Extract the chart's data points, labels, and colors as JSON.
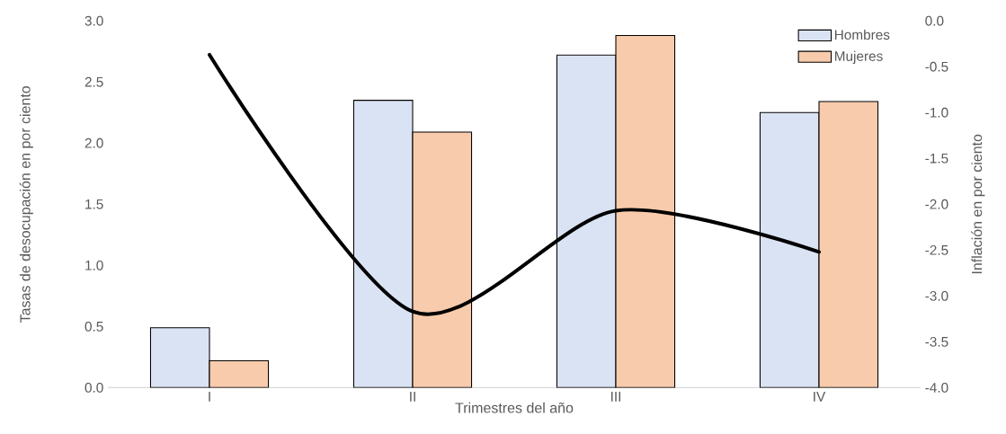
{
  "chart_data": {
    "type": "bar",
    "xlabel": "Trimestres del año",
    "ylabel": "Tasas de desocupación en por ciento",
    "y2label": "Inflación en por ciento",
    "categories": [
      "I",
      "II",
      "III",
      "IV"
    ],
    "series": [
      {
        "name": "Hombres",
        "color": "#dae3f3",
        "values": [
          0.49,
          2.35,
          2.72,
          2.25
        ]
      },
      {
        "name": "Mujeres",
        "color": "#f8cbad",
        "values": [
          0.22,
          2.09,
          2.88,
          2.34
        ]
      },
      {
        "type": "line",
        "axis": "y2",
        "color": "#000000",
        "values": [
          -0.37,
          -3.17,
          -2.07,
          -2.52
        ]
      }
    ],
    "ylim": [
      0,
      3
    ],
    "yticks": [
      {
        "value": 0,
        "label": "0.0"
      },
      {
        "value": 0.5,
        "label": "0.5"
      },
      {
        "value": 1,
        "label": "1.0"
      },
      {
        "value": 1.5,
        "label": "1.5"
      },
      {
        "value": 2,
        "label": "2.0"
      },
      {
        "value": 2.5,
        "label": "2.5"
      },
      {
        "value": 3,
        "label": "3.0"
      }
    ],
    "y2lim": [
      -4,
      0
    ],
    "y2ticks": [
      {
        "value": -4,
        "label": "-4.0"
      },
      {
        "value": -3.5,
        "label": "-3.5"
      },
      {
        "value": -3,
        "label": "-3.0"
      },
      {
        "value": -2.5,
        "label": "-2.5"
      },
      {
        "value": -2,
        "label": "-2.0"
      },
      {
        "value": -1.5,
        "label": "-1.5"
      },
      {
        "value": -1,
        "label": "-1.0"
      },
      {
        "value": -0.5,
        "label": "-0.5"
      },
      {
        "value": 0,
        "label": "0.0"
      }
    ],
    "legend": "top right"
  }
}
